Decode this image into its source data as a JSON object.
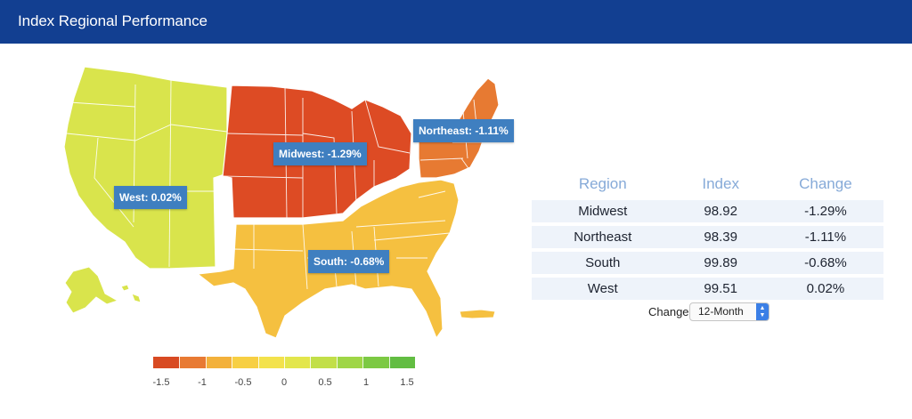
{
  "header": {
    "title": "Index Regional Performance"
  },
  "map": {
    "regions": [
      {
        "name": "West",
        "change": 0.02,
        "color": "#d9e44c",
        "label": "West: 0.02%"
      },
      {
        "name": "Midwest",
        "change": -1.29,
        "color": "#dd4b24",
        "label": "Midwest: -1.29%"
      },
      {
        "name": "Northeast",
        "change": -1.11,
        "color": "#e77a32",
        "label": "Northeast: -1.11%"
      },
      {
        "name": "South",
        "change": -0.68,
        "color": "#f5c040",
        "label": "South: -0.68%"
      }
    ],
    "state_border_color": "#ffffff"
  },
  "legend": {
    "ticks": [
      "-1.5",
      "-1",
      "-0.5",
      "0",
      "0.5",
      "1",
      "1.5"
    ],
    "tick_values": [
      -1.5,
      -1,
      -0.5,
      0,
      0.5,
      1,
      1.5
    ],
    "min": -1.5,
    "max": 1.5,
    "colors": [
      "#d84a22",
      "#e87a33",
      "#f3b13b",
      "#f7cf43",
      "#f3e24c",
      "#e3e64c",
      "#c2df48",
      "#9fd646",
      "#7cc943",
      "#62bd42"
    ]
  },
  "table": {
    "headers": {
      "region": "Region",
      "index": "Index",
      "change": "Change"
    },
    "rows": [
      {
        "region": "Midwest",
        "index": "98.92",
        "change": "-1.29%"
      },
      {
        "region": "Northeast",
        "index": "98.39",
        "change": "-1.11%"
      },
      {
        "region": "South",
        "index": "99.89",
        "change": "-0.68%"
      },
      {
        "region": "West",
        "index": "99.51",
        "change": "0.02%"
      }
    ]
  },
  "controls": {
    "change_label": "Change",
    "period_selected": "12-Month"
  },
  "colors": {
    "header_bg": "#123f91",
    "label_bg": "#3f7fc0",
    "table_row_bg": "#eef3fa",
    "table_header_text": "#86aad8"
  }
}
